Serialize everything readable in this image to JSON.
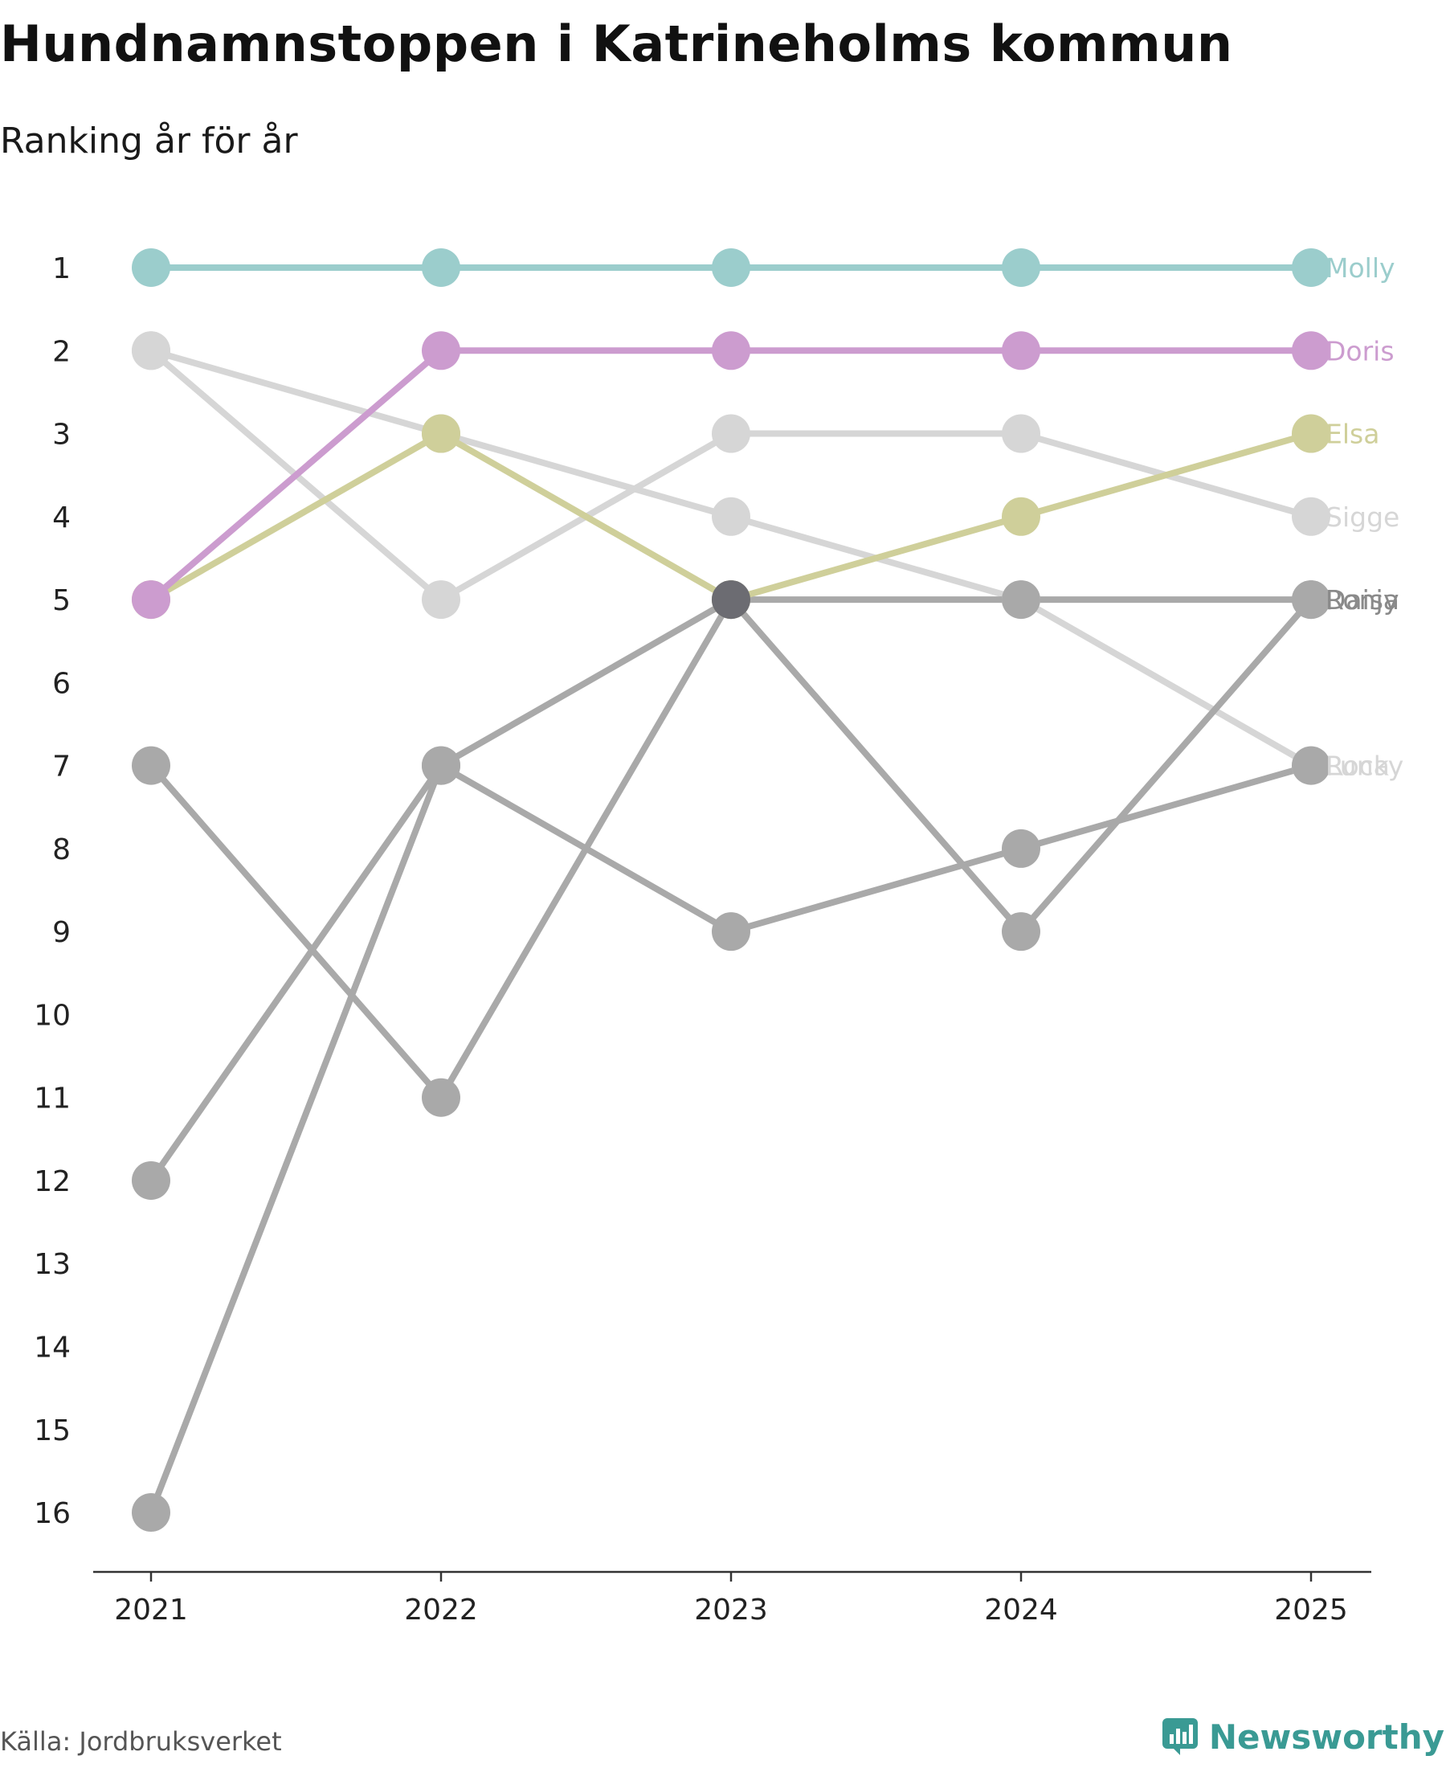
{
  "header": {
    "title": "Hundnamnstoppen i Katrineholms kommun",
    "subtitle": "Ranking år för år"
  },
  "footer": {
    "source": "Källa: Jordbruksverket",
    "brand": "Newsworthy"
  },
  "colors": {
    "Molly": "#9bcdcc",
    "Doris": "#cc9ccf",
    "Elsa": "#cfcf9a",
    "light_gray": "#d6d6d6",
    "mid_gray": "#a9a9a9",
    "dark_gray": "#6c6c72",
    "brand": "#3a9a94"
  },
  "chart_data": {
    "type": "line",
    "title": "Hundnamnstoppen i Katrineholms kommun",
    "subtitle": "Ranking år för år",
    "x": [
      "2021",
      "2022",
      "2023",
      "2024",
      "2025"
    ],
    "y_ticks": [
      "1",
      "2",
      "3",
      "4",
      "5",
      "6",
      "7",
      "8",
      "9",
      "10",
      "11",
      "12",
      "13",
      "14",
      "15",
      "16"
    ],
    "ylim": [
      1,
      16
    ],
    "y_inverted": true,
    "xlabel": "",
    "ylabel": "",
    "series": [
      {
        "name": "Molly",
        "values": [
          1,
          1,
          1,
          1,
          1
        ],
        "color": "#9bcdcc",
        "label_color": "#9bcdcc"
      },
      {
        "name": "Doris",
        "values": [
          5,
          2,
          2,
          2,
          2
        ],
        "color": "#cc9ccf",
        "label_color": "#cc9ccf"
      },
      {
        "name": "Elsa",
        "values": [
          5,
          3,
          5,
          4,
          3
        ],
        "color": "#cfcf9a",
        "label_color": "#cfcf9a"
      },
      {
        "name": "Rocky",
        "values": [
          2,
          3,
          4,
          5,
          7
        ],
        "color": "#d6d6d6",
        "label_color": "#d6d6d6"
      },
      {
        "name": "Ronja",
        "values": [
          16,
          7,
          5,
          9,
          5
        ],
        "color": "#a9a9a9",
        "label_color": "#8a8a8a"
      },
      {
        "name": "Sigge",
        "values": [
          2,
          5,
          3,
          3,
          4
        ],
        "color": "#d6d6d6",
        "label_color": "#d6d6d6"
      },
      {
        "name": "Daisy",
        "values": [
          7,
          11,
          5,
          5,
          5
        ],
        "color": "#a9a9a9",
        "label_color": "#8a8a8a"
      },
      {
        "name": "Luna",
        "values": [
          12,
          7,
          9,
          8,
          7
        ],
        "color": "#a9a9a9",
        "label_color": "#d6d6d6"
      }
    ]
  }
}
